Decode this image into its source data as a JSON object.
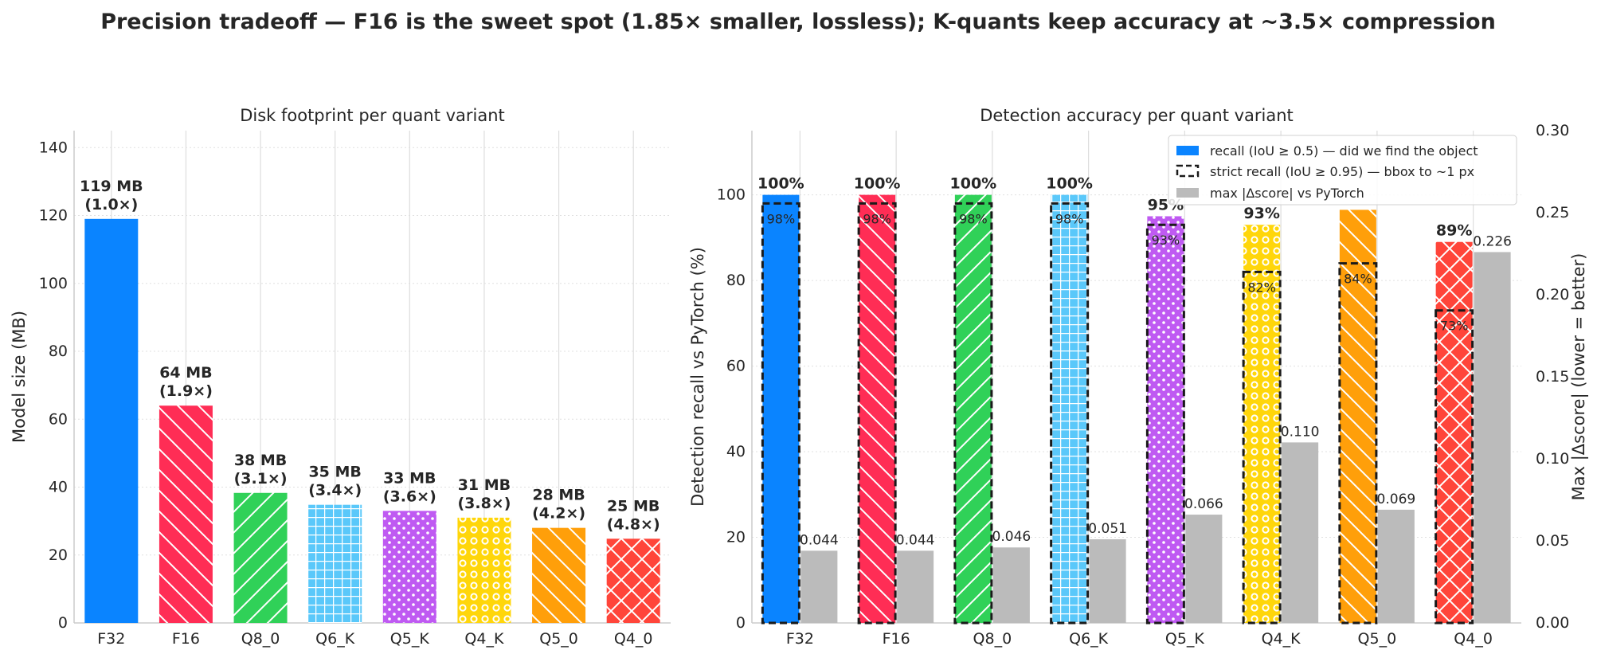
{
  "suptitle": "Precision tradeoff — F16 is the sweet spot (1.85× smaller, lossless); K-quants keep accuracy at ~3.5× compression",
  "colors": {
    "F32": "#0a84ff",
    "F16": "#ff2d55",
    "Q8_0": "#30d158",
    "Q6_K": "#5ac8fa",
    "Q5_K": "#bf5af2",
    "Q4_K": "#ffd60a",
    "Q5_0": "#ff9f0a",
    "Q4_0": "#ff453a",
    "gray": "#bbbbbb",
    "text": "#262626"
  },
  "patterns": [
    "solid",
    "backslash",
    "slash",
    "grid",
    "dots",
    "rings",
    "backslash",
    "crosshatch"
  ],
  "chart_data": [
    {
      "type": "bar",
      "title": "Disk footprint per quant variant",
      "xlabel": "",
      "ylabel": "Model size (MB)",
      "ylim": [
        0,
        145
      ],
      "yticks": [
        0,
        20,
        40,
        60,
        80,
        100,
        120,
        140
      ],
      "grid": true,
      "categories": [
        "F32",
        "F16",
        "Q8_0",
        "Q6_K",
        "Q5_K",
        "Q4_K",
        "Q5_0",
        "Q4_0"
      ],
      "values": [
        119,
        64,
        38.3,
        34.8,
        33,
        31,
        28,
        24.8
      ],
      "labels": [
        [
          "119 MB",
          "(1.0×)"
        ],
        [
          "64 MB",
          "(1.9×)"
        ],
        [
          "38 MB",
          "(3.1×)"
        ],
        [
          "35 MB",
          "(3.4×)"
        ],
        [
          "33 MB",
          "(3.6×)"
        ],
        [
          "31 MB",
          "(3.8×)"
        ],
        [
          "28 MB",
          "(4.2×)"
        ],
        [
          "25 MB",
          "(4.8×)"
        ]
      ]
    },
    {
      "type": "bar",
      "title": "Detection accuracy per quant variant",
      "xlabel": "",
      "ylabel": "Detection recall vs PyTorch (%)",
      "ylabel_right": "Max |Δscore| (lower = better)",
      "ylim": [
        0,
        115
      ],
      "ylim_right": [
        0,
        0.3
      ],
      "yticks": [
        0,
        20,
        40,
        60,
        80,
        100
      ],
      "yticks_right": [
        "0.00",
        "0.05",
        "0.10",
        "0.15",
        "0.20",
        "0.25",
        "0.30"
      ],
      "grid": true,
      "legend_position": "top-right",
      "categories": [
        "F32",
        "F16",
        "Q8_0",
        "Q6_K",
        "Q5_K",
        "Q4_K",
        "Q5_0",
        "Q4_0"
      ],
      "series": [
        {
          "name": "recall (IoU ≥ 0.5) — did we find the object",
          "values": [
            100,
            100,
            100,
            100,
            95,
            93,
            96.5,
            89
          ],
          "labels": [
            "100%",
            "100%",
            "100%",
            "100%",
            "95%",
            "93%",
            "",
            "89%"
          ]
        },
        {
          "name": "strict recall (IoU ≥ 0.95) — bbox to ~1 px",
          "values": [
            98,
            98,
            98,
            98,
            93,
            82,
            84,
            73
          ],
          "labels": [
            "98%",
            "98%",
            "98%",
            "98%",
            "93%",
            "82%",
            "84%",
            "73%"
          ]
        },
        {
          "name": "max |Δscore| vs PyTorch",
          "axis": "right",
          "values": [
            0.044,
            0.044,
            0.046,
            0.051,
            0.066,
            0.11,
            0.069,
            0.226
          ],
          "labels": [
            "0.044",
            "0.044",
            "0.046",
            "0.051",
            "0.066",
            "0.110",
            "0.069",
            "0.226"
          ]
        }
      ]
    }
  ]
}
